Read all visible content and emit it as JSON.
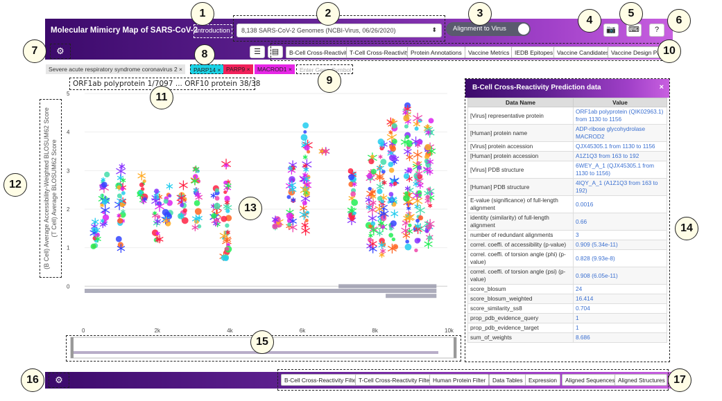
{
  "header": {
    "title": "Molecular Mimicry Map of SARS-CoV-2",
    "intro_label": "Introduction",
    "genome_select": "8,138 SARS-CoV-2 Genomes (NCBI-Virus, 06/26/2020)",
    "toggle_label": "Alignment to Virus",
    "icons": [
      "camera-icon",
      "keyboard-icon",
      "help-icon"
    ]
  },
  "tabs": [
    "B-Cell Cross-Reactivity",
    "T-Cell Cross-Reactivity",
    "Protein Annotations",
    "Vaccine Metrics",
    "IEDB Epitopes",
    "Vaccine Candidates",
    "Vaccine Design Panel"
  ],
  "view_icons": [
    "list-icon",
    "panel-icon"
  ],
  "filters": {
    "virus_chip": "Severe acute respiratory syndrome coronavirus 2",
    "gene_chips": [
      {
        "label": "PARP14",
        "color": "#19d3e6"
      },
      {
        "label": "PARP9",
        "color": "#f0215a"
      },
      {
        "label": "MACROD1",
        "color": "#e626e6"
      }
    ],
    "gene_placeholder": "Enter Gene Symbol"
  },
  "protein_range": "ORF1ab polyprotein 1/7097 ... ORF10 protein 38/38",
  "callouts": [
    "1",
    "2",
    "3",
    "4",
    "5",
    "6",
    "7",
    "8",
    "9",
    "10",
    "11",
    "12",
    "13",
    "14",
    "15",
    "16",
    "17"
  ],
  "panel": {
    "title": "B-Cell Cross-Reactivity Prediction data",
    "col_name": "Data Name",
    "col_value": "Value",
    "rows": [
      {
        "n": "[Virus] representative protein",
        "v": "ORF1ab polyprotein (QIK02963.1) from 1130 to 1156"
      },
      {
        "n": "[Human] protein name",
        "v": "ADP-ribose glycohydrolase MACROD2"
      },
      {
        "n": "[Virus] protein accession",
        "v": "QJX45305.1 from 1130 to 1156"
      },
      {
        "n": "[Human] protein accession",
        "v": "A1Z1Q3 from 163 to 192"
      },
      {
        "n": "[Virus] PDB structure",
        "v": "6WEY_A_1 (QJX45305.1 from 1130 to 1156)"
      },
      {
        "n": "[Human] PDB structure",
        "v": "4IQY_A_1 (A1Z1Q3 from 163 to 192)"
      },
      {
        "n": "E-value (significance) of full-length alignment",
        "v": "0.0016"
      },
      {
        "n": "identity (similarity) of full-length alignment",
        "v": "0.66"
      },
      {
        "n": "number of redundant alignments",
        "v": "3"
      },
      {
        "n": "correl. coeffi. of accessibility (p-value)",
        "v": "0.909 (5.34e-11)"
      },
      {
        "n": "correl. coeffi. of torsion angle (phi) (p-value)",
        "v": "0.828 (9.93e-8)"
      },
      {
        "n": "correl. coeffi. of torsion angle (psi) (p-value)",
        "v": "0.908 (6.05e-11)"
      },
      {
        "n": "score_blosum",
        "v": "24"
      },
      {
        "n": "score_blosum_weighted",
        "v": "16.414"
      },
      {
        "n": "score_similarity_ss8",
        "v": "0.704"
      },
      {
        "n": "prop_pdb_evidence_query",
        "v": "1"
      },
      {
        "n": "prop_pdb_evidence_target",
        "v": "1"
      },
      {
        "n": "sum_of_weights",
        "v": "8.686"
      }
    ]
  },
  "bottom_tabs": [
    "B-Cell Cross-Reactivity Filter",
    "T-Cell Cross-Reactivity Filter",
    "Human Protein Filter",
    "Data Tables",
    "Expression",
    "Aligned Sequences",
    "Aligned Structures"
  ],
  "chart_data": {
    "type": "scatter",
    "ylabel": "(B Cell) Average Accessibility-Weighted BLOSUM62 Score\n(T Cell) Average BLOSUM62 Score",
    "xlim": [
      0,
      10000
    ],
    "ylim": [
      -0.3,
      5
    ],
    "x_ticks": [
      "0",
      "2k",
      "4k",
      "6k",
      "8k",
      "10k"
    ],
    "y_ticks": [
      "0",
      "1",
      "2",
      "3",
      "4",
      "5"
    ],
    "clusters": [
      {
        "x": 300,
        "y": [
          1.0,
          1.7
        ]
      },
      {
        "x": 550,
        "y": [
          1.6,
          3.0
        ]
      },
      {
        "x": 1000,
        "y": [
          0.9,
          3.2
        ]
      },
      {
        "x": 1600,
        "y": [
          2.2,
          2.9
        ]
      },
      {
        "x": 2000,
        "y": [
          1.2,
          2.6
        ]
      },
      {
        "x": 2300,
        "y": [
          1.6,
          2.6
        ]
      },
      {
        "x": 2700,
        "y": [
          1.7,
          2.7
        ]
      },
      {
        "x": 3100,
        "y": [
          1.5,
          3.1
        ]
      },
      {
        "x": 3600,
        "y": [
          1.6,
          2.6
        ]
      },
      {
        "x": 3900,
        "y": [
          0.7,
          3.2
        ]
      },
      {
        "x": 5300,
        "y": [
          1.5,
          1.8
        ]
      },
      {
        "x": 5700,
        "y": [
          1.5,
          3.2
        ]
      },
      {
        "x": 6100,
        "y": [
          1.4,
          4.2
        ]
      },
      {
        "x": 6600,
        "y": [
          3.5,
          3.5
        ]
      },
      {
        "x": 7400,
        "y": [
          1.7,
          3.0
        ]
      },
      {
        "x": 7900,
        "y": [
          0.9,
          3.4
        ]
      },
      {
        "x": 8200,
        "y": [
          0.8,
          3.8
        ]
      },
      {
        "x": 8500,
        "y": [
          0.9,
          4.3
        ]
      },
      {
        "x": 8900,
        "y": [
          0.9,
          4.7
        ]
      },
      {
        "x": 9200,
        "y": [
          0.9,
          4.4
        ]
      },
      {
        "x": 9500,
        "y": [
          1.0,
          4.5
        ]
      }
    ]
  }
}
